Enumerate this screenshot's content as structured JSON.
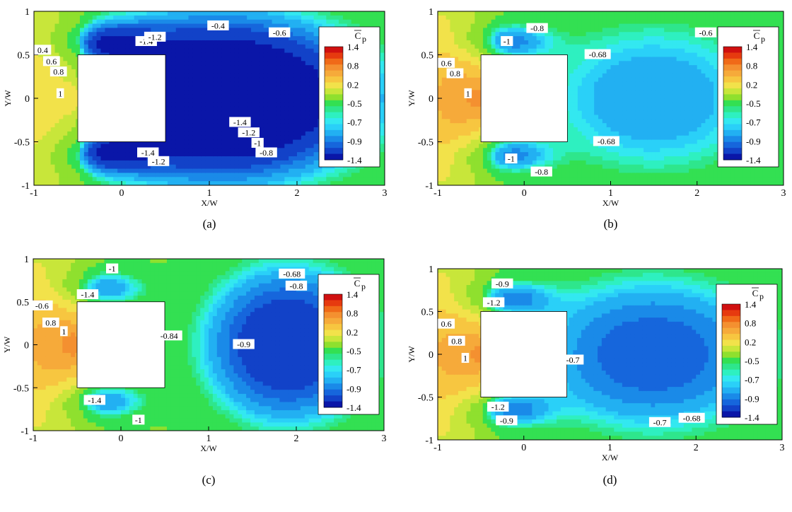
{
  "chart_data": [
    {
      "type": "contour",
      "panel_label": "(a)",
      "xlabel": "X/W",
      "ylabel": "Y/W",
      "xlim": [
        -1,
        3
      ],
      "ylim": [
        -1,
        1
      ],
      "x_ticks": [
        "-1",
        "0",
        "1",
        "2",
        "3"
      ],
      "y_ticks": [
        "1",
        "0.5",
        "0",
        "-0.5",
        "-1"
      ],
      "obstacle": {
        "x": [
          -0.5,
          0.5
        ],
        "y": [
          -0.5,
          0.5
        ]
      },
      "variable": "Cp",
      "wake_core_level": -1.4,
      "wake_center": [
        1.1,
        0
      ],
      "wake_extent_x": 2.25,
      "contour_labels": [
        {
          "text": "-0.4",
          "x": 1.1,
          "y": 0.83
        },
        {
          "text": "-0.6",
          "x": 1.8,
          "y": 0.75
        },
        {
          "text": "0.4",
          "x": -0.9,
          "y": 0.55
        },
        {
          "text": "0.6",
          "x": -0.8,
          "y": 0.42
        },
        {
          "text": "0.8",
          "x": -0.72,
          "y": 0.3
        },
        {
          "text": "1",
          "x": -0.7,
          "y": 0.05
        },
        {
          "text": "-1.4",
          "x": 0.28,
          "y": 0.65
        },
        {
          "text": "-1.2",
          "x": 0.38,
          "y": 0.7
        },
        {
          "text": "-1.4",
          "x": 1.35,
          "y": -0.28
        },
        {
          "text": "-1.2",
          "x": 1.45,
          "y": -0.4
        },
        {
          "text": "-1",
          "x": 1.55,
          "y": -0.52
        },
        {
          "text": "-0.8",
          "x": 1.65,
          "y": -0.63
        },
        {
          "text": "-1.4",
          "x": 0.3,
          "y": -0.63
        },
        {
          "text": "-1.2",
          "x": 0.42,
          "y": -0.73
        }
      ]
    },
    {
      "type": "contour",
      "panel_label": "(b)",
      "xlabel": "X/W",
      "ylabel": "Y/W",
      "xlim": [
        -1,
        3
      ],
      "ylim": [
        -1,
        1
      ],
      "x_ticks": [
        "-1",
        "0",
        "1",
        "2",
        "3"
      ],
      "y_ticks": [
        "1",
        "0.5",
        "0",
        "-0.5",
        "-1"
      ],
      "obstacle": {
        "x": [
          -0.5,
          0.5
        ],
        "y": [
          -0.5,
          0.5
        ]
      },
      "variable": "Cp",
      "wake_core_level": -0.5,
      "wake_center": [
        1.5,
        0
      ],
      "wake_extent_x": 2.3,
      "contour_labels": [
        {
          "text": "-1",
          "x": -0.2,
          "y": 0.65
        },
        {
          "text": "-0.8",
          "x": 0.15,
          "y": 0.8
        },
        {
          "text": "-0.68",
          "x": 0.85,
          "y": 0.5
        },
        {
          "text": "-0.6",
          "x": 2.1,
          "y": 0.75
        },
        {
          "text": "0.6",
          "x": -0.9,
          "y": 0.4
        },
        {
          "text": "0.8",
          "x": -0.8,
          "y": 0.28
        },
        {
          "text": "1",
          "x": -0.65,
          "y": 0.05
        },
        {
          "text": "-0.68",
          "x": 0.95,
          "y": -0.5
        },
        {
          "text": "-1",
          "x": -0.15,
          "y": -0.7
        },
        {
          "text": "-0.8",
          "x": 0.2,
          "y": -0.85
        }
      ]
    },
    {
      "type": "contour",
      "panel_label": "(c)",
      "xlabel": "X/W",
      "ylabel": "Y/W",
      "xlim": [
        -1,
        3
      ],
      "ylim": [
        -1,
        1
      ],
      "x_ticks": [
        "-1",
        "0",
        "1",
        "2",
        "3"
      ],
      "y_ticks": [
        "1",
        "0.5",
        "0",
        "-0.5",
        "-1"
      ],
      "obstacle": {
        "x": [
          -0.5,
          0.5
        ],
        "y": [
          -0.5,
          0.5
        ]
      },
      "variable": "Cp",
      "wake_core_level": -0.9,
      "wake_center": [
        1.9,
        0
      ],
      "wake_extent_x": 2.3,
      "contour_labels": [
        {
          "text": "-1",
          "x": -0.1,
          "y": 0.88
        },
        {
          "text": "-0.68",
          "x": 1.95,
          "y": 0.82
        },
        {
          "text": "-0.8",
          "x": 2.0,
          "y": 0.68
        },
        {
          "text": "-1.4",
          "x": -0.38,
          "y": 0.58
        },
        {
          "text": "-0.6",
          "x": -0.9,
          "y": 0.45
        },
        {
          "text": "0.8",
          "x": -0.8,
          "y": 0.25
        },
        {
          "text": "1",
          "x": -0.65,
          "y": 0.15
        },
        {
          "text": "-0.84",
          "x": 0.55,
          "y": 0.1
        },
        {
          "text": "-0.9",
          "x": 1.4,
          "y": 0.0
        },
        {
          "text": "-1.4",
          "x": -0.3,
          "y": -0.65
        },
        {
          "text": "-1",
          "x": 0.2,
          "y": -0.88
        }
      ]
    },
    {
      "type": "contour",
      "panel_label": "(d)",
      "xlabel": "X/W",
      "ylabel": "Y/W",
      "xlim": [
        -1,
        3
      ],
      "ylim": [
        -1,
        1
      ],
      "x_ticks": [
        "-1",
        "0",
        "1",
        "2",
        "3"
      ],
      "y_ticks": [
        "1",
        "0.5",
        "0",
        "-0.5",
        "-1"
      ],
      "obstacle": {
        "x": [
          -0.5,
          0.5
        ],
        "y": [
          -0.5,
          0.5
        ]
      },
      "variable": "Cp",
      "wake_core_level": -0.7,
      "wake_center": [
        1.5,
        0
      ],
      "wake_extent_x": 2.35,
      "contour_labels": [
        {
          "text": "-0.9",
          "x": -0.25,
          "y": 0.82
        },
        {
          "text": "-1.2",
          "x": -0.35,
          "y": 0.6
        },
        {
          "text": "0.6",
          "x": -0.9,
          "y": 0.35
        },
        {
          "text": "0.8",
          "x": -0.78,
          "y": 0.15
        },
        {
          "text": "1",
          "x": -0.68,
          "y": -0.05
        },
        {
          "text": "-0.7",
          "x": 0.57,
          "y": -0.07
        },
        {
          "text": "-1.2",
          "x": -0.3,
          "y": -0.62
        },
        {
          "text": "-0.9",
          "x": -0.2,
          "y": -0.78
        },
        {
          "text": "-0.7",
          "x": 1.58,
          "y": -0.8
        },
        {
          "text": "-0.68",
          "x": 1.95,
          "y": -0.75
        }
      ]
    }
  ],
  "legend": {
    "title": "C",
    "title_subscript": "p",
    "labels": [
      "1.4",
      "0.8",
      "0.2",
      "-0.5",
      "-0.7",
      "-0.9",
      "-1.4"
    ]
  },
  "colormap": {
    "levels": [
      1.4,
      1.2,
      1.0,
      0.8,
      0.6,
      0.4,
      0.2,
      0.0,
      -0.3,
      -0.5,
      -0.55,
      -0.6,
      -0.65,
      -0.7,
      -0.8,
      -0.9,
      -1.0,
      -1.2,
      -1.4
    ],
    "colors": [
      "#d01010",
      "#e63a0f",
      "#f06a18",
      "#f49030",
      "#f6aa3a",
      "#f7c640",
      "#f2e24a",
      "#c8e63a",
      "#8fe02e",
      "#33e052",
      "#2ee68c",
      "#2ef0c0",
      "#33e8f0",
      "#2ad0f8",
      "#22b0f2",
      "#1a8ae8",
      "#1666dc",
      "#1242c8",
      "#0a16a8"
    ]
  }
}
